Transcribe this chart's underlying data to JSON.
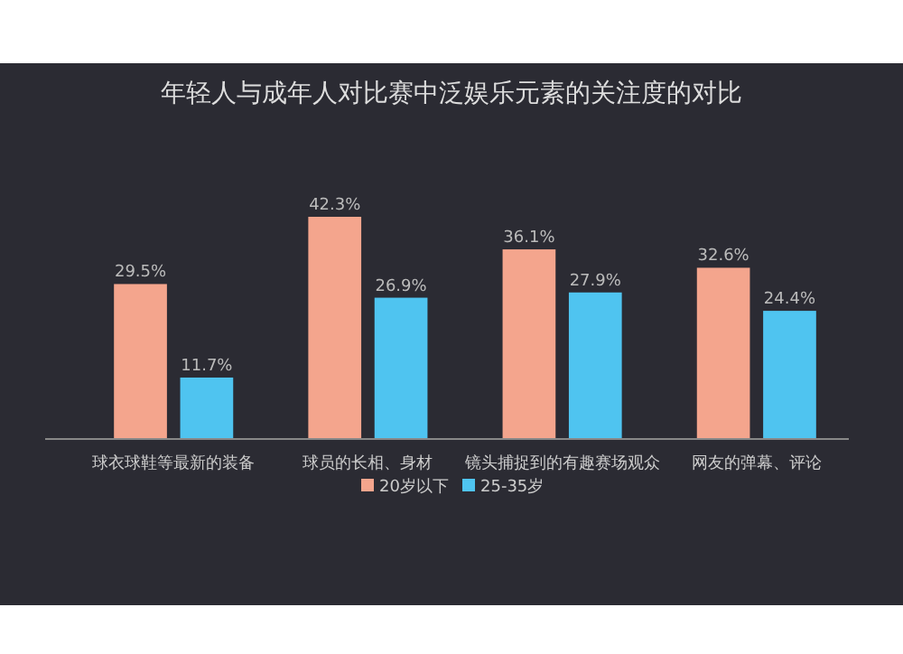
{
  "chart_data": {
    "type": "bar",
    "title": "年轻人与成年人对比赛中泛娱乐元素的关注度的对比",
    "categories": [
      "球衣球鞋等最新的装备",
      "球员的长相、身材",
      "镜头捕捉到的有趣赛场观众",
      "网友的弹幕、评论"
    ],
    "series": [
      {
        "name": "20岁以下",
        "color": "#f4a58d",
        "values": [
          29.5,
          42.3,
          36.1,
          32.6
        ],
        "value_labels": [
          "29.5%",
          "42.3%",
          "36.1%",
          "32.6%"
        ]
      },
      {
        "name": "25-35岁",
        "color": "#4fc4f0",
        "values": [
          11.7,
          26.9,
          27.9,
          24.4
        ],
        "value_labels": [
          "11.7%",
          "26.9%",
          "27.9%",
          "24.4%"
        ]
      }
    ],
    "legend": "bottom",
    "grid": false
  }
}
